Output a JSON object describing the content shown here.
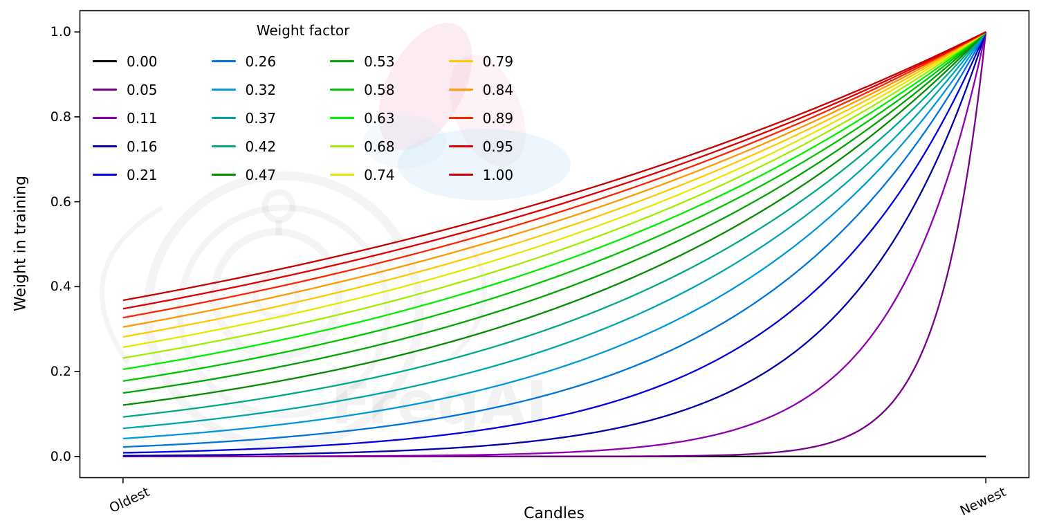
{
  "figure": {
    "background": "#ffffff",
    "watermark_text": "FreqAI"
  },
  "chart_data": {
    "type": "line",
    "title": "",
    "xlabel": "Candles",
    "ylabel": "Weight in training",
    "x_axis": {
      "tick_labels": [
        "Oldest",
        "Newest"
      ],
      "tick_rotation_deg": 25,
      "range_note": "normalized 0 (Oldest) to 1 (Newest), 5% margins"
    },
    "y_axis": {
      "ticks": [
        "0.0",
        "0.2",
        "0.4",
        "0.6",
        "0.8",
        "1.0"
      ],
      "lim": [
        0,
        1
      ]
    },
    "legend": {
      "title": "Weight factor",
      "position": "upper left",
      "columns": 4,
      "order": "column-major"
    },
    "formula": "weight(x) = exp(-(1 - x) / factor); factor = 0.00 gives weight 0",
    "series": [
      {
        "label": "0.00",
        "factor": 0.0,
        "weight_at_oldest": 0.0,
        "color": "#000000"
      },
      {
        "label": "0.05",
        "factor": 0.0526,
        "weight_at_oldest": 0.0,
        "color": "#77008a"
      },
      {
        "label": "0.11",
        "factor": 0.1053,
        "weight_at_oldest": 0.0001,
        "color": "#8f00b0"
      },
      {
        "label": "0.16",
        "factor": 0.1579,
        "weight_at_oldest": 0.0018,
        "color": "#0000a5"
      },
      {
        "label": "0.21",
        "factor": 0.2105,
        "weight_at_oldest": 0.0087,
        "color": "#0000e1"
      },
      {
        "label": "0.26",
        "factor": 0.2632,
        "weight_at_oldest": 0.0224,
        "color": "#0073dc"
      },
      {
        "label": "0.32",
        "factor": 0.3158,
        "weight_at_oldest": 0.0421,
        "color": "#0097dc"
      },
      {
        "label": "0.37",
        "factor": 0.3684,
        "weight_at_oldest": 0.0663,
        "color": "#00a6ab"
      },
      {
        "label": "0.42",
        "factor": 0.4211,
        "weight_at_oldest": 0.093,
        "color": "#00a986"
      },
      {
        "label": "0.47",
        "factor": 0.4737,
        "weight_at_oldest": 0.1211,
        "color": "#048b00"
      },
      {
        "label": "0.53",
        "factor": 0.5263,
        "weight_at_oldest": 0.1496,
        "color": "#00a400"
      },
      {
        "label": "0.58",
        "factor": 0.5789,
        "weight_at_oldest": 0.1778,
        "color": "#00c400"
      },
      {
        "label": "0.63",
        "factor": 0.6316,
        "weight_at_oldest": 0.2053,
        "color": "#00ef00"
      },
      {
        "label": "0.68",
        "factor": 0.6842,
        "weight_at_oldest": 0.2319,
        "color": "#9fee00"
      },
      {
        "label": "0.74",
        "factor": 0.7368,
        "weight_at_oldest": 0.2574,
        "color": "#e7e700"
      },
      {
        "label": "0.79",
        "factor": 0.7895,
        "weight_at_oldest": 0.2817,
        "color": "#ffc800"
      },
      {
        "label": "0.84",
        "factor": 0.8421,
        "weight_at_oldest": 0.305,
        "color": "#ff9800"
      },
      {
        "label": "0.89",
        "factor": 0.8947,
        "weight_at_oldest": 0.327,
        "color": "#fb2500"
      },
      {
        "label": "0.95",
        "factor": 0.9474,
        "weight_at_oldest": 0.348,
        "color": "#e10000"
      },
      {
        "label": "1.00",
        "factor": 1.0,
        "weight_at_oldest": 0.3679,
        "color": "#c80000"
      }
    ]
  }
}
